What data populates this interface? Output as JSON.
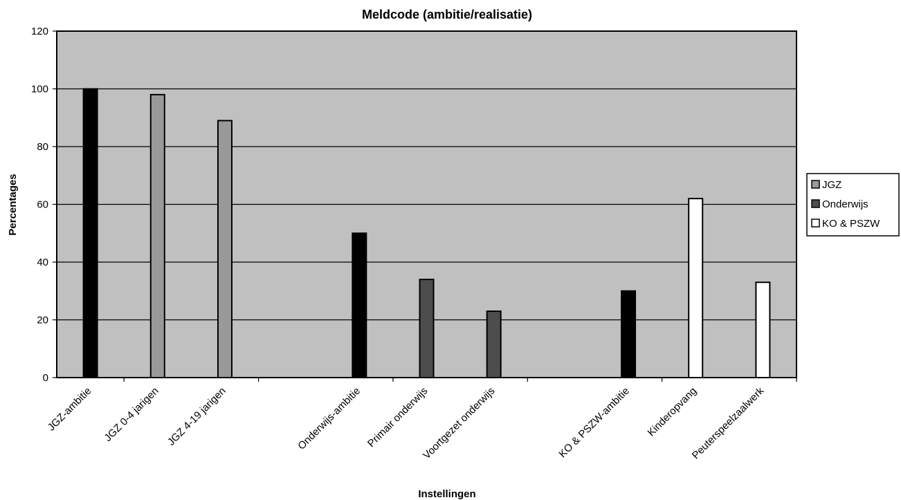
{
  "chart_data": {
    "type": "bar",
    "title": "Meldcode (ambitie/realisatie)",
    "xlabel": "Instellingen",
    "ylabel": "Percentages",
    "ylim": [
      0,
      120
    ],
    "yticks": [
      0,
      20,
      40,
      60,
      80,
      100,
      120
    ],
    "grid": true,
    "legend_position": "right",
    "categories": [
      "JGZ-ambitie",
      "JGZ 0-4 jarigen",
      "JGZ 4-19 jarigen",
      "",
      "Onderwijs-ambitie",
      "Primair onderwijs",
      "Voortgezet onderwijs",
      "",
      "KO & PSZW-ambitie",
      "Kinderopvang",
      "Peuterspeelzaalwerk"
    ],
    "values": [
      100,
      98,
      89,
      null,
      50,
      34,
      23,
      null,
      30,
      62,
      33
    ],
    "bar_groups": [
      "ambitie",
      "JGZ",
      "JGZ",
      null,
      "ambitie",
      "Onderwijs",
      "Onderwijs",
      null,
      "ambitie",
      "KO & PSZW",
      "KO & PSZW"
    ],
    "legend": [
      {
        "name": "JGZ",
        "color": "#999999"
      },
      {
        "name": "Onderwijs",
        "color": "#4d4d4d"
      },
      {
        "name": "KO & PSZW",
        "color": "#ffffff"
      }
    ],
    "colors": {
      "ambitie": "#000000",
      "JGZ": "#999999",
      "Onderwijs": "#4d4d4d",
      "KO & PSZW": "#ffffff",
      "plot_background": "#c0c0c0"
    }
  }
}
